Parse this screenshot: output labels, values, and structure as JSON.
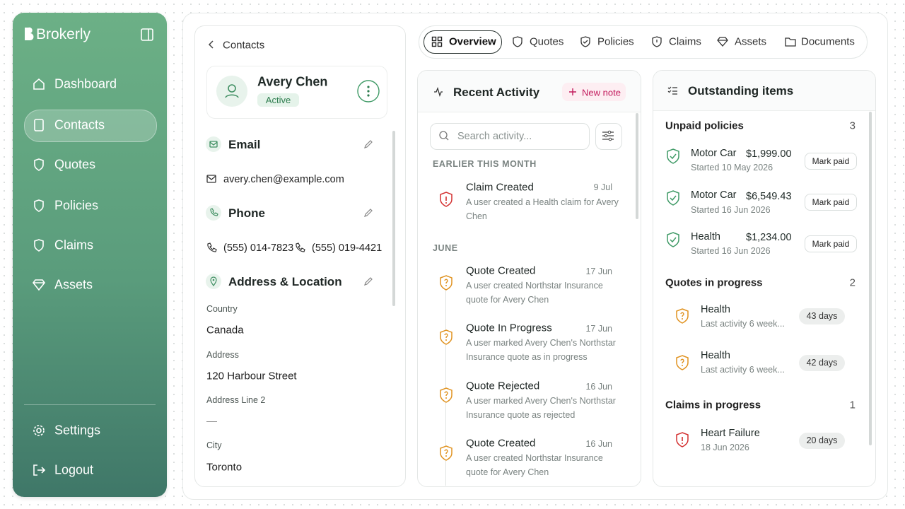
{
  "sidebar": {
    "brand": "Brokerly",
    "nav": [
      "Dashboard",
      "Contacts",
      "Quotes",
      "Policies",
      "Claims",
      "Assets"
    ],
    "footer": [
      "Settings",
      "Logout"
    ]
  },
  "contact": {
    "back": "Contacts",
    "name": "Avery Chen",
    "status": "Active",
    "email": {
      "title": "Email",
      "value": "avery.chen@example.com"
    },
    "phone": {
      "title": "Phone",
      "values": [
        "(555) 014-7823",
        "(555) 019-4421"
      ]
    },
    "address": {
      "title": "Address & Location",
      "fields": [
        {
          "label": "Country",
          "value": "Canada"
        },
        {
          "label": "Address",
          "value": "120 Harbour Street"
        },
        {
          "label": "Address Line 2",
          "value": "—"
        },
        {
          "label": "City",
          "value": "Toronto"
        }
      ]
    }
  },
  "tabs": [
    "Overview",
    "Quotes",
    "Policies",
    "Claims",
    "Assets",
    "Documents"
  ],
  "activity": {
    "title": "Recent Activity",
    "new_note": "New note",
    "search_placeholder": "Search activity...",
    "groups": [
      {
        "label": "EARLIER THIS MONTH",
        "items": [
          {
            "title": "Claim Created",
            "date": "9 Jul",
            "desc": "A user created a Health claim for Avery Chen"
          }
        ]
      },
      {
        "label": "JUNE",
        "items": [
          {
            "title": "Quote Created",
            "date": "17 Jun",
            "desc": "A user created Northstar Insurance quote for Avery Chen"
          },
          {
            "title": "Quote In Progress",
            "date": "17 Jun",
            "desc": "A user marked Avery Chen's Northstar Insurance quote as in progress"
          },
          {
            "title": "Quote Rejected",
            "date": "16 Jun",
            "desc": "A user marked Avery Chen's Northstar Insurance quote as rejected"
          },
          {
            "title": "Quote Created",
            "date": "16 Jun",
            "desc": "A user created Northstar Insurance quote for Avery Chen"
          }
        ]
      }
    ]
  },
  "outstanding": {
    "title": "Outstanding items",
    "unpaid": {
      "title": "Unpaid policies",
      "count": 3,
      "action": "Mark paid",
      "items": [
        {
          "name": "Motor Car",
          "amount": "$1,999.00",
          "sub": "Started 10 May 2026"
        },
        {
          "name": "Motor Car",
          "amount": "$6,549.43",
          "sub": "Started 16 Jun 2026"
        },
        {
          "name": "Health",
          "amount": "$1,234.00",
          "sub": "Started 16 Jun 2026"
        }
      ]
    },
    "quotes": {
      "title": "Quotes in progress",
      "count": 2,
      "items": [
        {
          "name": "Health",
          "sub": "Last activity 6 week...",
          "badge": "43 days"
        },
        {
          "name": "Health",
          "sub": "Last activity 6 week...",
          "badge": "42 days"
        }
      ]
    },
    "claims": {
      "title": "Claims in progress",
      "count": 1,
      "items": [
        {
          "name": "Heart Failure",
          "sub": "18 Jun 2026",
          "badge": "20 days"
        }
      ]
    }
  }
}
